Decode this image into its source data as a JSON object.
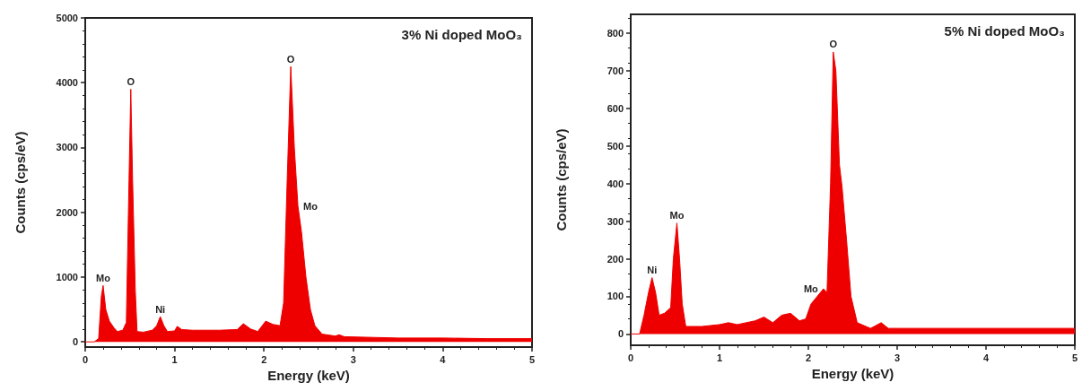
{
  "chart_data": [
    {
      "type": "area",
      "title": "3% Ni doped MoO₃",
      "xlabel": "Energy (keV)",
      "ylabel": "Counts (cps/eV)",
      "x": [
        0,
        0.1,
        0.15,
        0.18,
        0.2,
        0.23,
        0.27,
        0.32,
        0.36,
        0.42,
        0.46,
        0.49,
        0.51,
        0.53,
        0.56,
        0.58,
        0.65,
        0.75,
        0.8,
        0.84,
        0.88,
        0.92,
        1.0,
        1.03,
        1.08,
        1.2,
        1.5,
        1.7,
        1.77,
        1.85,
        1.93,
        2.02,
        2.1,
        2.18,
        2.22,
        2.26,
        2.3,
        2.34,
        2.38,
        2.42,
        2.47,
        2.52,
        2.57,
        2.65,
        2.8,
        2.84,
        2.9,
        3.5,
        4,
        4.5,
        5
      ],
      "series": [
        {
          "color": "#ee0000",
          "values": [
            0,
            0,
            50,
            700,
            870,
            500,
            320,
            220,
            160,
            180,
            300,
            2500,
            3900,
            2500,
            800,
            160,
            150,
            180,
            250,
            390,
            250,
            160,
            170,
            240,
            190,
            180,
            180,
            190,
            280,
            200,
            160,
            320,
            270,
            250,
            600,
            2500,
            4250,
            3000,
            2100,
            1700,
            1000,
            500,
            250,
            120,
            90,
            110,
            80,
            60,
            60,
            50,
            50
          ]
        }
      ],
      "xlim": [
        0,
        5
      ],
      "xticks": [
        0,
        1,
        2,
        3,
        4,
        5
      ],
      "ylim": [
        -80,
        5000
      ],
      "yticks": [
        0,
        1000,
        2000,
        3000,
        4000,
        5000
      ],
      "grid": false,
      "marker": "none",
      "annotations": [
        {
          "text": "Mo",
          "x": 0.2,
          "y": 870
        },
        {
          "text": "O",
          "x": 0.51,
          "y": 3900
        },
        {
          "text": "Ni",
          "x": 0.84,
          "y": 390
        },
        {
          "text": "O",
          "x": 2.3,
          "y": 4250
        },
        {
          "text": "Mo",
          "x": 2.38,
          "y": 2100
        }
      ]
    },
    {
      "type": "area",
      "title": "5% Ni doped MoO₃",
      "xlabel": "Energy (keV)",
      "ylabel": "Counts (cps/eV)",
      "x": [
        0,
        0.1,
        0.15,
        0.2,
        0.24,
        0.28,
        0.32,
        0.38,
        0.45,
        0.48,
        0.52,
        0.55,
        0.58,
        0.62,
        0.8,
        1.0,
        1.1,
        1.2,
        1.4,
        1.5,
        1.6,
        1.7,
        1.8,
        1.9,
        1.97,
        2.03,
        2.1,
        2.17,
        2.21,
        2.25,
        2.28,
        2.31,
        2.35,
        2.38,
        2.43,
        2.48,
        2.55,
        2.7,
        2.82,
        2.9,
        3,
        4,
        5
      ],
      "series": [
        {
          "color": "#ee0000",
          "values": [
            0,
            0,
            50,
            110,
            150,
            110,
            50,
            55,
            70,
            200,
            295,
            200,
            80,
            20,
            20,
            25,
            30,
            25,
            35,
            45,
            30,
            50,
            55,
            35,
            40,
            80,
            100,
            120,
            110,
            400,
            750,
            700,
            450,
            390,
            250,
            100,
            30,
            15,
            30,
            15,
            15,
            15,
            15
          ]
        }
      ],
      "xlim": [
        0,
        5
      ],
      "xticks": [
        0,
        1,
        2,
        3,
        4,
        5
      ],
      "ylim": [
        -30,
        850
      ],
      "yticks": [
        0,
        100,
        200,
        300,
        400,
        500,
        600,
        700,
        800
      ],
      "grid": false,
      "marker": "none",
      "annotations": [
        {
          "text": "Ni",
          "x": 0.24,
          "y": 150
        },
        {
          "text": "Mo",
          "x": 0.52,
          "y": 295
        },
        {
          "text": "Mo",
          "x": 2.17,
          "y": 120
        },
        {
          "text": "O",
          "x": 2.28,
          "y": 750
        }
      ]
    }
  ]
}
